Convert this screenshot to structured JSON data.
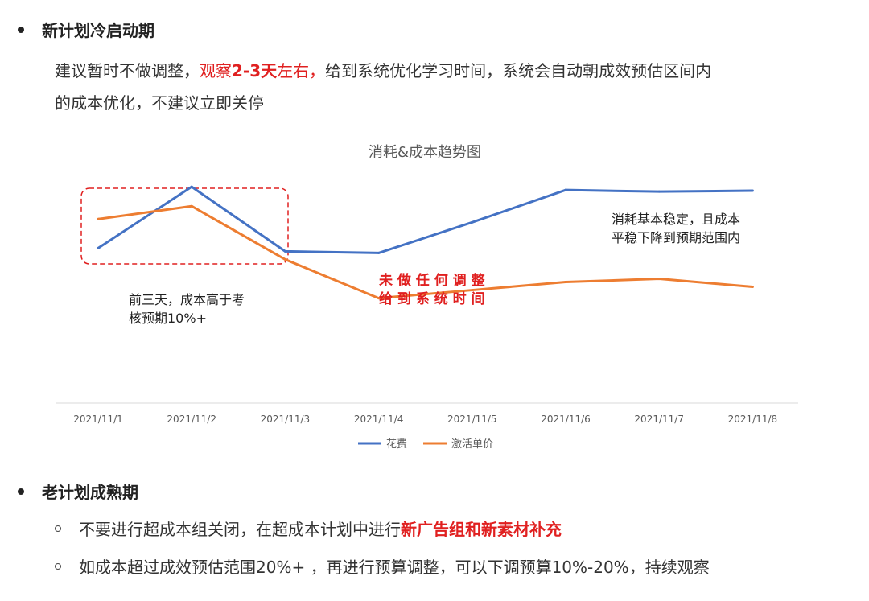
{
  "section1": {
    "heading": "新计划冷启动期",
    "para_a": "建议暂时不做调整，",
    "para_b": "观察",
    "para_c": "2-3天",
    "para_d": "左右，",
    "para_e": "给到系统优化学习时间，系统会自动朝成效预估区间内",
    "para_f": "的成本优化，不建议立即关停"
  },
  "chart_data": {
    "type": "line",
    "title": "消耗&成本趋势图",
    "categories": [
      "2021/11/1",
      "2021/11/2",
      "2021/11/3",
      "2021/11/4",
      "2021/11/5",
      "2021/11/6",
      "2021/11/7",
      "2021/11/8"
    ],
    "series": [
      {
        "name": "花费",
        "color": "#4472c4",
        "values": [
          48,
          67,
          47,
          46.5,
          56,
          66,
          65.5,
          65.8
        ]
      },
      {
        "name": "激活单价",
        "color": "#ed7d31",
        "values": [
          57,
          61,
          44.5,
          32.5,
          35,
          37.5,
          38.5,
          36
        ]
      }
    ],
    "ylim": [
      0,
      80
    ],
    "grid": false,
    "legend": "bottom",
    "annotations": {
      "left_line1": "前三天，成本高于考",
      "left_line2": "核预期10%+",
      "mid_line1": "未 做 任 何 调 整",
      "mid_line2": "给 到 系 统 时 间",
      "right_line1": "消耗基本稳定，且成本",
      "right_line2": "平稳下降到预期范围内"
    }
  },
  "section2": {
    "heading": "老计划成熟期",
    "item1_a": "不要进行超成本组关闭，在超成本计划中进行",
    "item1_b": "新广告组和新素材补充",
    "item2": "如成本超过成效预估范围20%+ ，再进行预算调整，可以下调预算10%-20%，持续观察"
  }
}
